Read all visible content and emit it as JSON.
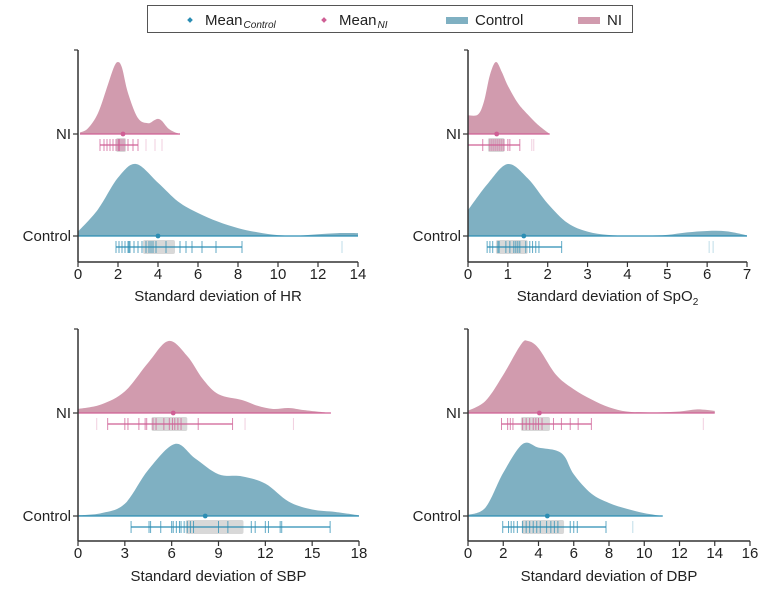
{
  "legend": {
    "items": [
      {
        "label": "Mean",
        "sub": "Control",
        "kind": "mean",
        "color_key": "Control"
      },
      {
        "label": "Mean",
        "sub": "NI",
        "kind": "mean",
        "color_key": "NI"
      },
      {
        "label": "Control",
        "sub": "",
        "kind": "swatch",
        "color_key": "Control"
      },
      {
        "label": "NI",
        "sub": "",
        "kind": "swatch",
        "color_key": "NI"
      }
    ]
  },
  "colors": {
    "NI": {
      "fill": "#d19bae",
      "line": "#cf5f95"
    },
    "Control": {
      "fill": "#7fb0c2",
      "line": "#2b8db3"
    },
    "box": "#b8b8b8",
    "axis": "#333333"
  },
  "chart_data": [
    {
      "type": "area",
      "subtype": "raincloud",
      "title": "",
      "xlabel": "Standard deviation of HR",
      "xlabel_sub": "",
      "ylabel": "",
      "xlim": [
        0,
        14
      ],
      "xticks": [
        0,
        2,
        4,
        6,
        8,
        10,
        12,
        14
      ],
      "grid": false,
      "series": [
        {
          "name": "NI",
          "color_key": "NI",
          "density": {
            "x": [
              0.1,
              0.5,
              1.0,
              1.5,
              1.8,
              2.0,
              2.2,
              2.5,
              3.0,
              3.5,
              3.8,
              4.0,
              4.2,
              4.5,
              4.8,
              5.1
            ],
            "y": [
              0.02,
              0.08,
              0.29,
              0.69,
              0.93,
              1.0,
              0.92,
              0.57,
              0.22,
              0.15,
              0.19,
              0.21,
              0.18,
              0.08,
              0.03,
              0
            ]
          },
          "mean": 2.25,
          "box": [
            1.9,
            2.4
          ],
          "whisker": [
            1.1,
            3.0
          ],
          "ticks": [
            1.1,
            1.3,
            1.45,
            1.6,
            1.75,
            1.9,
            2.0,
            2.05,
            2.1,
            2.2,
            2.3,
            2.5,
            2.75,
            3.0
          ],
          "outliers": [
            3.4,
            3.85,
            4.2
          ]
        },
        {
          "name": "Control",
          "color_key": "Control",
          "density": {
            "x": [
              0,
              1,
              2,
              2.9,
              4,
              5,
              6,
              7,
              8,
              9,
              10,
              11,
              12,
              13,
              14
            ],
            "y": [
              0.06,
              0.37,
              0.81,
              1.0,
              0.74,
              0.48,
              0.32,
              0.2,
              0.11,
              0.05,
              0.012,
              0.006,
              0.025,
              0.04,
              0.04
            ]
          },
          "mean": 4.0,
          "box": [
            3.25,
            4.85
          ],
          "whisker": [
            1.9,
            8.2
          ],
          "ticks": [
            1.9,
            2.05,
            2.2,
            2.35,
            2.5,
            2.55,
            2.6,
            2.8,
            3.0,
            3.2,
            3.4,
            3.55,
            3.65,
            3.75,
            3.9,
            4.4,
            5.1,
            5.4,
            5.7,
            6.2,
            6.9,
            8.2
          ],
          "outliers": [
            13.2
          ]
        }
      ]
    },
    {
      "type": "area",
      "subtype": "raincloud",
      "title": "",
      "xlabel": "Standard deviation of SpO",
      "xlabel_sub": "2",
      "ylabel": "",
      "xlim": [
        0,
        7
      ],
      "xticks": [
        0,
        1,
        2,
        3,
        4,
        5,
        6,
        7
      ],
      "grid": false,
      "series": [
        {
          "name": "NI",
          "color_key": "NI",
          "density": {
            "x": [
              0,
              0.25,
              0.4,
              0.55,
              0.7,
              0.85,
              1.0,
              1.25,
              1.5,
              1.75,
              2.05
            ],
            "y": [
              0.26,
              0.27,
              0.45,
              0.82,
              1.0,
              0.86,
              0.67,
              0.43,
              0.27,
              0.13,
              0
            ]
          },
          "mean": 0.72,
          "box": [
            0.5,
            0.92
          ],
          "whisker": [
            0.0,
            1.3
          ],
          "ticks": [
            0.0,
            0.37,
            0.55,
            0.6,
            0.65,
            0.7,
            0.75,
            0.8,
            0.85,
            0.9,
            1.0,
            1.05,
            1.3
          ],
          "outliers": [
            1.6,
            1.65
          ]
        },
        {
          "name": "Control",
          "color_key": "Control",
          "density": {
            "x": [
              0,
              0.5,
              1.0,
              1.5,
              2.0,
              2.5,
              3.0,
              3.5,
              4.0,
              4.5,
              5.0,
              5.5,
              6.0,
              6.5,
              7.0
            ],
            "y": [
              0.36,
              0.73,
              1.0,
              0.8,
              0.45,
              0.18,
              0.06,
              0.015,
              0.003,
              0.005,
              0.015,
              0.05,
              0.07,
              0.065,
              0.01
            ]
          },
          "mean": 1.4,
          "box": [
            0.7,
            1.5
          ],
          "whisker": [
            0.48,
            2.35
          ],
          "ticks": [
            0.48,
            0.55,
            0.62,
            0.75,
            0.78,
            0.95,
            1.05,
            1.15,
            1.2,
            1.25,
            1.3,
            1.45,
            1.55,
            1.62,
            1.7,
            1.78,
            2.35
          ],
          "outliers": [
            6.05,
            6.15
          ]
        }
      ]
    },
    {
      "type": "area",
      "subtype": "raincloud",
      "title": "",
      "xlabel": "Standard deviation of SBP",
      "xlabel_sub": "",
      "ylabel": "",
      "xlim": [
        0,
        18
      ],
      "xticks": [
        0,
        3,
        6,
        9,
        12,
        15,
        18
      ],
      "grid": false,
      "series": [
        {
          "name": "NI",
          "color_key": "NI",
          "density": {
            "x": [
              0,
              1.5,
              3,
              4.5,
              5.8,
              7,
              8,
              9,
              10.5,
              11.5,
              12.5,
              13.5,
              14.5,
              16.2
            ],
            "y": [
              0.056,
              0.12,
              0.3,
              0.7,
              1.0,
              0.79,
              0.47,
              0.26,
              0.18,
              0.1,
              0.056,
              0.07,
              0.04,
              0
            ]
          },
          "mean": 6.1,
          "box": [
            4.7,
            7.0
          ],
          "whisker": [
            1.9,
            9.9
          ],
          "ticks": [
            1.9,
            3.0,
            3.2,
            3.9,
            4.3,
            4.4,
            4.8,
            5.0,
            5.5,
            5.85,
            6.05,
            6.2,
            6.4,
            6.6,
            7.7,
            9.9
          ],
          "outliers": [
            1.2,
            10.7,
            13.8
          ]
        },
        {
          "name": "Control",
          "color_key": "Control",
          "density": {
            "x": [
              0,
              1.5,
              3,
              4.5,
              6.2,
              7.5,
              9,
              10.5,
              12,
              13.5,
              15,
              16.5,
              18
            ],
            "y": [
              0.01,
              0.04,
              0.17,
              0.64,
              1.0,
              0.8,
              0.58,
              0.55,
              0.45,
              0.2,
              0.09,
              0.056,
              0.01
            ]
          },
          "mean": 8.15,
          "box": [
            6.9,
            10.6
          ],
          "whisker": [
            3.4,
            16.15
          ],
          "ticks": [
            3.4,
            4.55,
            4.65,
            5.3,
            6.0,
            6.1,
            6.3,
            6.5,
            6.6,
            6.8,
            7.0,
            7.2,
            7.4,
            9.0,
            9.6,
            11.1,
            11.35,
            12.0,
            12.2,
            12.95,
            13.05,
            16.15
          ],
          "outliers": []
        }
      ]
    },
    {
      "type": "area",
      "subtype": "raincloud",
      "title": "",
      "xlabel": "Standard deviation of DBP",
      "xlabel_sub": "",
      "ylabel": "",
      "xlim": [
        0,
        16
      ],
      "xticks": [
        0,
        2,
        4,
        6,
        8,
        10,
        12,
        14,
        16
      ],
      "grid": false,
      "series": [
        {
          "name": "NI",
          "color_key": "NI",
          "density": {
            "x": [
              0,
              1,
              2,
              3,
              3.4,
              4,
              5,
              6,
              7,
              8,
              9,
              10,
              11,
              12,
              13,
              14
            ],
            "y": [
              0.03,
              0.17,
              0.53,
              0.95,
              1.0,
              0.9,
              0.53,
              0.33,
              0.19,
              0.08,
              0.02,
              0.01,
              0.01,
              0.02,
              0.05,
              0.03
            ]
          },
          "mean": 4.05,
          "box": [
            3.0,
            4.65
          ],
          "whisker": [
            1.9,
            7.0
          ],
          "ticks": [
            1.9,
            2.25,
            2.4,
            2.55,
            3.1,
            3.3,
            3.5,
            3.7,
            3.85,
            4.0,
            4.2,
            4.85,
            5.3,
            5.8,
            6.25,
            7.0
          ],
          "outliers": [
            13.35
          ]
        },
        {
          "name": "Control",
          "color_key": "Control",
          "density": {
            "x": [
              0,
              1,
              2,
              3.1,
              4,
              5,
              5.5,
              6,
              7,
              8,
              9,
              10,
              11.05
            ],
            "y": [
              0.014,
              0.12,
              0.6,
              1.0,
              0.95,
              0.91,
              0.82,
              0.58,
              0.31,
              0.18,
              0.1,
              0.04,
              0
            ]
          },
          "mean": 4.5,
          "box": [
            3.05,
            5.45
          ],
          "whisker": [
            1.97,
            7.83
          ],
          "ticks": [
            1.97,
            2.3,
            2.45,
            2.6,
            2.8,
            3.1,
            3.3,
            3.5,
            3.7,
            3.9,
            4.1,
            4.46,
            4.7,
            4.9,
            5.1,
            5.8,
            6.0,
            6.2,
            7.83
          ],
          "outliers": [
            9.35
          ]
        }
      ]
    }
  ]
}
